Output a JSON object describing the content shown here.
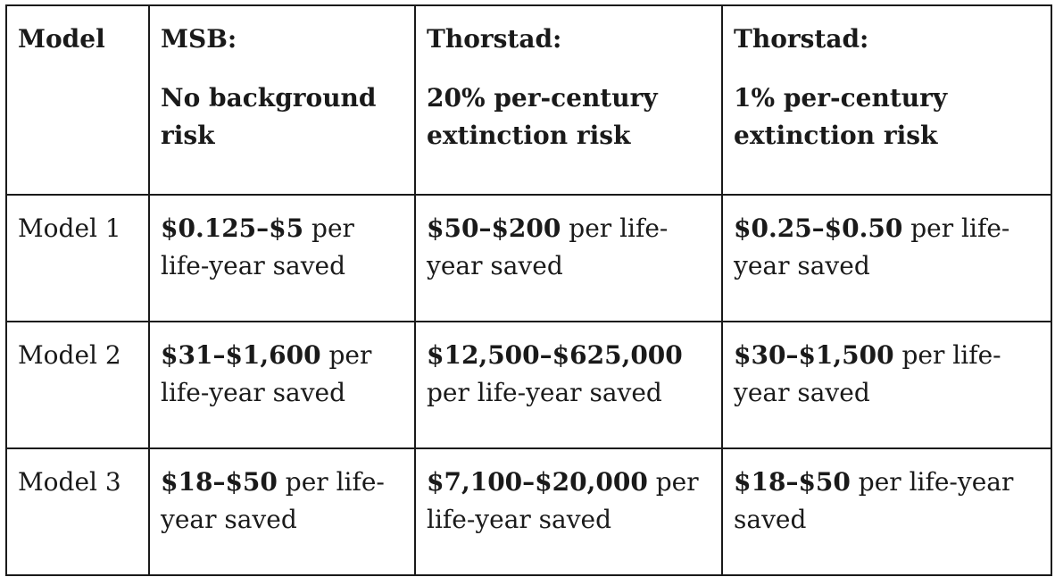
{
  "table": {
    "headers": [
      {
        "title": "Model",
        "subtitle": ""
      },
      {
        "title": "MSB:",
        "subtitle": "No background risk"
      },
      {
        "title": "Thorstad:",
        "subtitle": "20% per-century extinction risk"
      },
      {
        "title": "Thorstad:",
        "subtitle": "1% per-century extinction risk"
      }
    ],
    "rows": [
      {
        "model": "Model 1",
        "cells": [
          {
            "bold": "$0.125–$5",
            "rest": " per life-year saved"
          },
          {
            "bold": "$50–$200",
            "rest": " per life-year saved"
          },
          {
            "bold": "$0.25–$0.50",
            "rest": " per life-year saved"
          }
        ]
      },
      {
        "model": "Model 2",
        "cells": [
          {
            "bold": "$31–$1,600",
            "rest": " per life-year saved"
          },
          {
            "bold": "$12,500–$625,000",
            "rest": " per life-year saved"
          },
          {
            "bold": "$30–$1,500",
            "rest": " per life-year saved"
          }
        ]
      },
      {
        "model": "Model 3",
        "cells": [
          {
            "bold": "$18–$50",
            "rest": " per life-year saved"
          },
          {
            "bold": "$7,100–$20,000",
            "rest": " per life-year saved"
          },
          {
            "bold": "$18–$50",
            "rest": " per life-year saved"
          }
        ]
      }
    ]
  }
}
